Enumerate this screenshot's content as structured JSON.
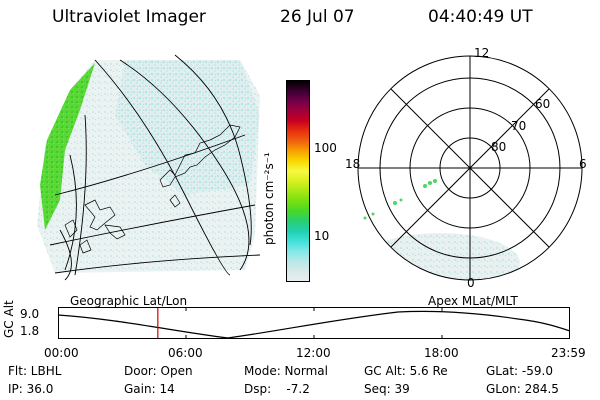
{
  "header": {
    "title": "Ultraviolet Imager",
    "date": "26 Jul 07",
    "time": "04:40:49 UT"
  },
  "colorbar": {
    "unit_label": "photon cm⁻²s⁻¹",
    "ticks": [
      "100",
      "10"
    ],
    "colors": [
      "#000000",
      "#3a0030",
      "#70004a",
      "#a0003a",
      "#c80020",
      "#e83010",
      "#f06010",
      "#f8a000",
      "#f8d800",
      "#f8f840",
      "#d8f020",
      "#a8e818",
      "#78e010",
      "#48d828",
      "#28d070",
      "#20d0b0",
      "#40e0d8",
      "#80e8e8",
      "#b8e8e8",
      "#d8e8e8",
      "#e8eef0"
    ]
  },
  "geo_map": {
    "label": "Geographic Lat/Lon"
  },
  "polar_plot": {
    "label": "Apex MLat/MLT",
    "mlt_labels": [
      "12",
      "18",
      "6",
      "0"
    ],
    "lat_labels": [
      "60",
      "70",
      "80"
    ]
  },
  "alt_plot": {
    "ylabel": "GC Alt",
    "yticks": [
      "9.0",
      "1.8"
    ],
    "xticks": [
      "00:00",
      "06:00",
      "12:00",
      "18:00",
      "23:59"
    ],
    "cursor_time_fraction": 0.195
  },
  "footer": {
    "filter": "Flt: LBHL",
    "door": "Door: Open",
    "mode": "Mode: Normal",
    "gc_alt": "GC Alt: 5.6 Re",
    "glat": "GLat: -59.0",
    "ip": "IP: 36.0",
    "gain": "Gain: 14",
    "dsp": "Dsp:    -7.2",
    "seq": "Seq: 39",
    "glon": "GLon: 284.5"
  }
}
